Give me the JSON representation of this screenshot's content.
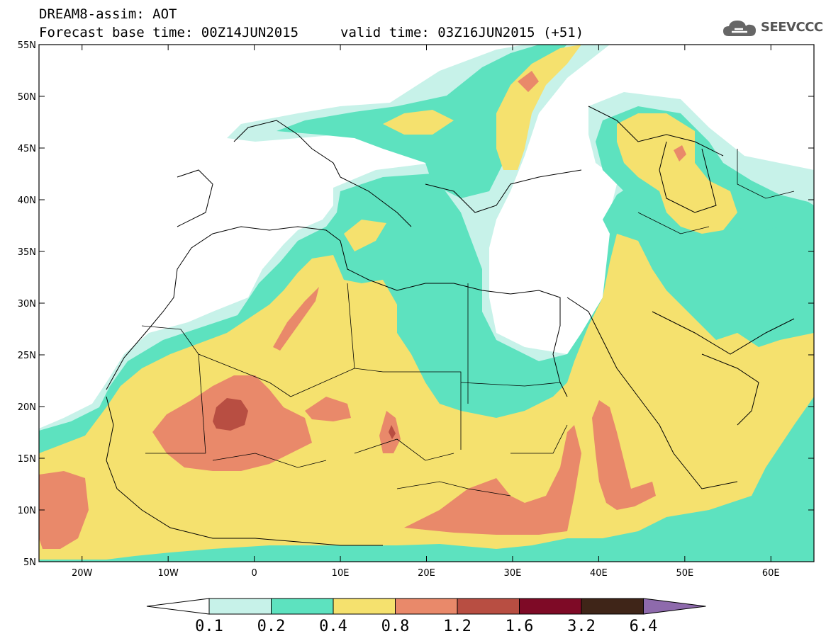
{
  "header": {
    "line1": "DREAM8-assim: AOT",
    "line2": "Forecast base time: 00Z14JUN2015",
    "valid": "valid time: 03Z16JUN2015 (+51)"
  },
  "logo": {
    "text": "SEEVCCC",
    "icon": "cloud-icon"
  },
  "map": {
    "lat_labels": [
      "55N",
      "50N",
      "45N",
      "40N",
      "35N",
      "30N",
      "25N",
      "20N",
      "15N",
      "10N",
      "5N"
    ],
    "lon_labels": [
      "20W",
      "10W",
      "0",
      "10E",
      "20E",
      "30E",
      "40E",
      "50E",
      "60E"
    ],
    "lat_range": [
      5,
      55
    ],
    "lon_range": [
      -25,
      65
    ]
  },
  "colorbar": {
    "labels": [
      "0.1",
      "0.2",
      "0.4",
      "0.8",
      "1.2",
      "1.6",
      "3.2",
      "6.4"
    ],
    "colors": [
      "#ffffff",
      "#c7f2e9",
      "#5de2bf",
      "#f5e16e",
      "#e9896a",
      "#b84e42",
      "#7e0a26",
      "#3f2518",
      "#8e6aac"
    ]
  }
}
